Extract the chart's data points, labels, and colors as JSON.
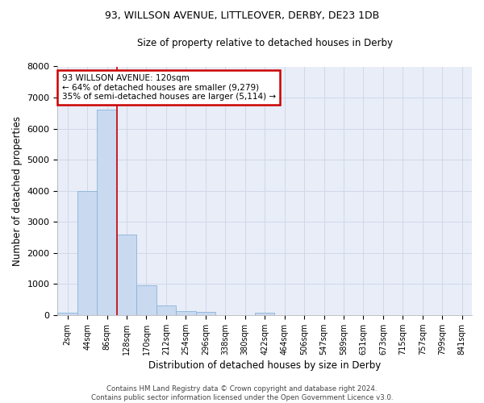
{
  "title_line1": "93, WILLSON AVENUE, LITTLEOVER, DERBY, DE23 1DB",
  "title_line2": "Size of property relative to detached houses in Derby",
  "xlabel": "Distribution of detached houses by size in Derby",
  "ylabel": "Number of detached properties",
  "categories": [
    "2sqm",
    "44sqm",
    "86sqm",
    "128sqm",
    "170sqm",
    "212sqm",
    "254sqm",
    "296sqm",
    "338sqm",
    "380sqm",
    "422sqm",
    "464sqm",
    "506sqm",
    "547sqm",
    "589sqm",
    "631sqm",
    "673sqm",
    "715sqm",
    "757sqm",
    "799sqm",
    "841sqm"
  ],
  "values": [
    75,
    4000,
    6600,
    2600,
    950,
    300,
    125,
    100,
    0,
    0,
    75,
    0,
    0,
    0,
    0,
    0,
    0,
    0,
    0,
    0,
    0
  ],
  "bar_color": "#c9d9f0",
  "bar_edge_color": "#8ab4d8",
  "grid_color": "#d0d8e8",
  "bg_color": "#e8edf8",
  "vline_color": "#cc0000",
  "annotation_text": "93 WILLSON AVENUE: 120sqm\n← 64% of detached houses are smaller (9,279)\n35% of semi-detached houses are larger (5,114) →",
  "annotation_box_color": "#ffffff",
  "annotation_box_edge": "#cc0000",
  "ylim": [
    0,
    8000
  ],
  "yticks": [
    0,
    1000,
    2000,
    3000,
    4000,
    5000,
    6000,
    7000,
    8000
  ],
  "footer_line1": "Contains HM Land Registry data © Crown copyright and database right 2024.",
  "footer_line2": "Contains public sector information licensed under the Open Government Licence v3.0."
}
